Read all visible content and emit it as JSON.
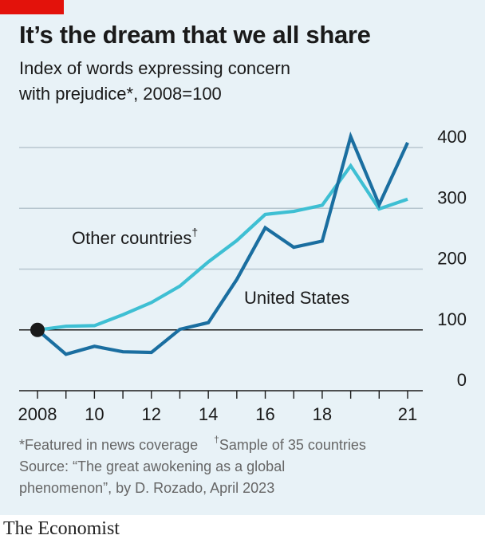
{
  "header": {
    "title": "It’s the dream that we all share",
    "subtitle_line1": "Index of words expressing concern",
    "subtitle_line2": "with prejudice*, 2008=100"
  },
  "chart_data": {
    "type": "line",
    "xlim": [
      2008,
      2021
    ],
    "ylim": [
      0,
      420
    ],
    "x_ticks": [
      2008,
      2009,
      2010,
      2011,
      2012,
      2013,
      2014,
      2015,
      2016,
      2017,
      2018,
      2019,
      2020,
      2021
    ],
    "x_tick_labels": [
      {
        "x": 2008,
        "label": "2008"
      },
      {
        "x": 2010,
        "label": "10"
      },
      {
        "x": 2012,
        "label": "12"
      },
      {
        "x": 2014,
        "label": "14"
      },
      {
        "x": 2016,
        "label": "16"
      },
      {
        "x": 2018,
        "label": "18"
      },
      {
        "x": 2021,
        "label": "21"
      }
    ],
    "y_ticks": [
      0,
      100,
      200,
      300,
      400
    ],
    "y_tick_labels": [
      "0",
      "100",
      "200",
      "300",
      "400"
    ],
    "baseline_value": 100,
    "series": [
      {
        "name": "Other countries",
        "marker": "†",
        "color": "#3ebfd3",
        "x": [
          2008,
          2009,
          2010,
          2011,
          2012,
          2013,
          2014,
          2015,
          2016,
          2017,
          2018,
          2019,
          2020,
          2021
        ],
        "values": [
          100,
          106,
          107,
          125,
          145,
          172,
          212,
          247,
          290,
          295,
          305,
          370,
          299,
          315
        ]
      },
      {
        "name": "United States",
        "color": "#1a6ea0",
        "x": [
          2008,
          2009,
          2010,
          2011,
          2012,
          2013,
          2014,
          2015,
          2016,
          2017,
          2018,
          2019,
          2020,
          2021
        ],
        "values": [
          100,
          60,
          73,
          64,
          63,
          101,
          112,
          183,
          268,
          236,
          246,
          418,
          306,
          408
        ]
      }
    ]
  },
  "footer": {
    "note_featured": "*Featured in news coverage",
    "note_sample_mark": "†",
    "note_sample": "Sample of 35 countries",
    "source_line1": "Source: “The great awokening as a global",
    "source_line2": "phenomenon”, by D. Rozado, April 2023"
  },
  "brand": "The Economist",
  "colors": {
    "background": "#e8f2f7",
    "accent_red": "#e3120b",
    "other_countries": "#3ebfd3",
    "united_states": "#1a6ea0",
    "gridline": "#b7c6cf",
    "axis": "#1a1a1a"
  }
}
